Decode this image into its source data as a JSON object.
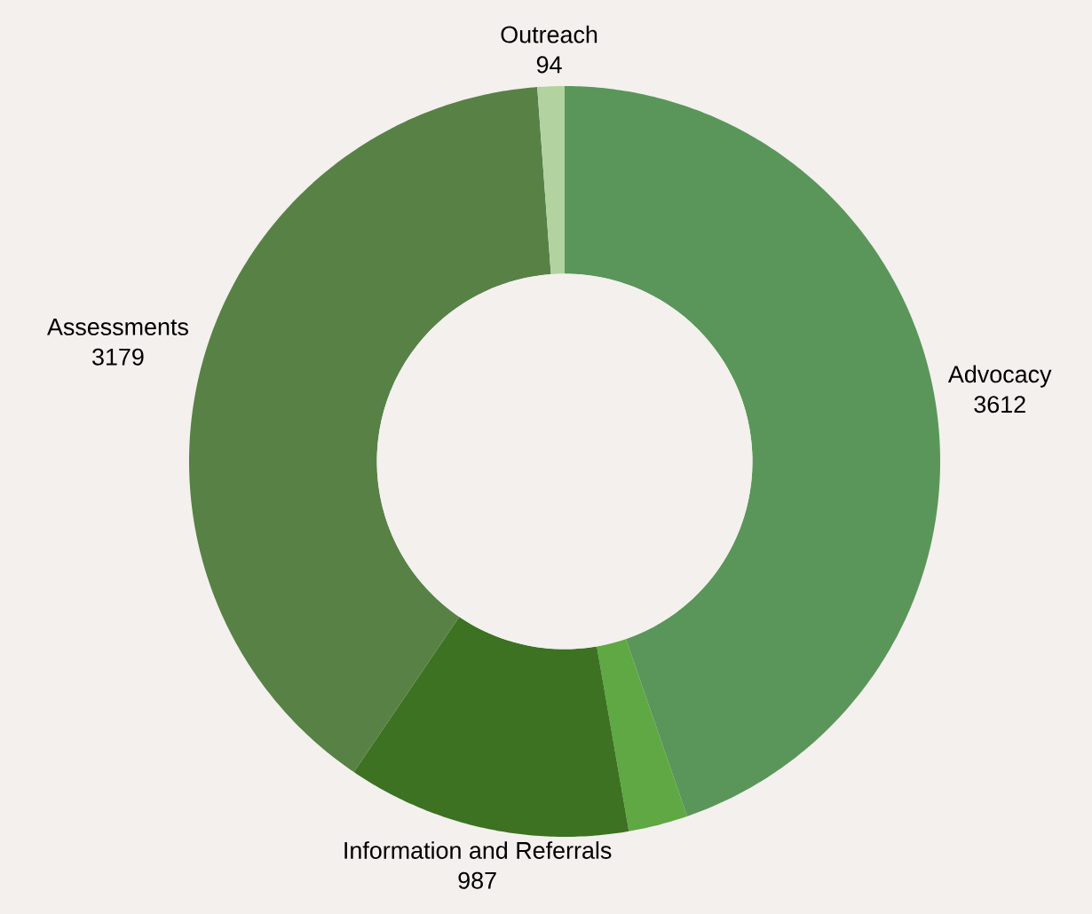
{
  "chart_data": {
    "type": "donut",
    "categories": [
      "Advocacy",
      null,
      "Information and Referrals",
      "Assessments",
      "Outreach"
    ],
    "values": [
      3612,
      206,
      987,
      3179,
      94
    ],
    "value_labels": [
      "3612",
      null,
      "987",
      "3179",
      "94"
    ],
    "colors": [
      "#5a9659",
      "#5fa843",
      "#3c7221",
      "#588146",
      "#b2d3a0"
    ]
  }
}
